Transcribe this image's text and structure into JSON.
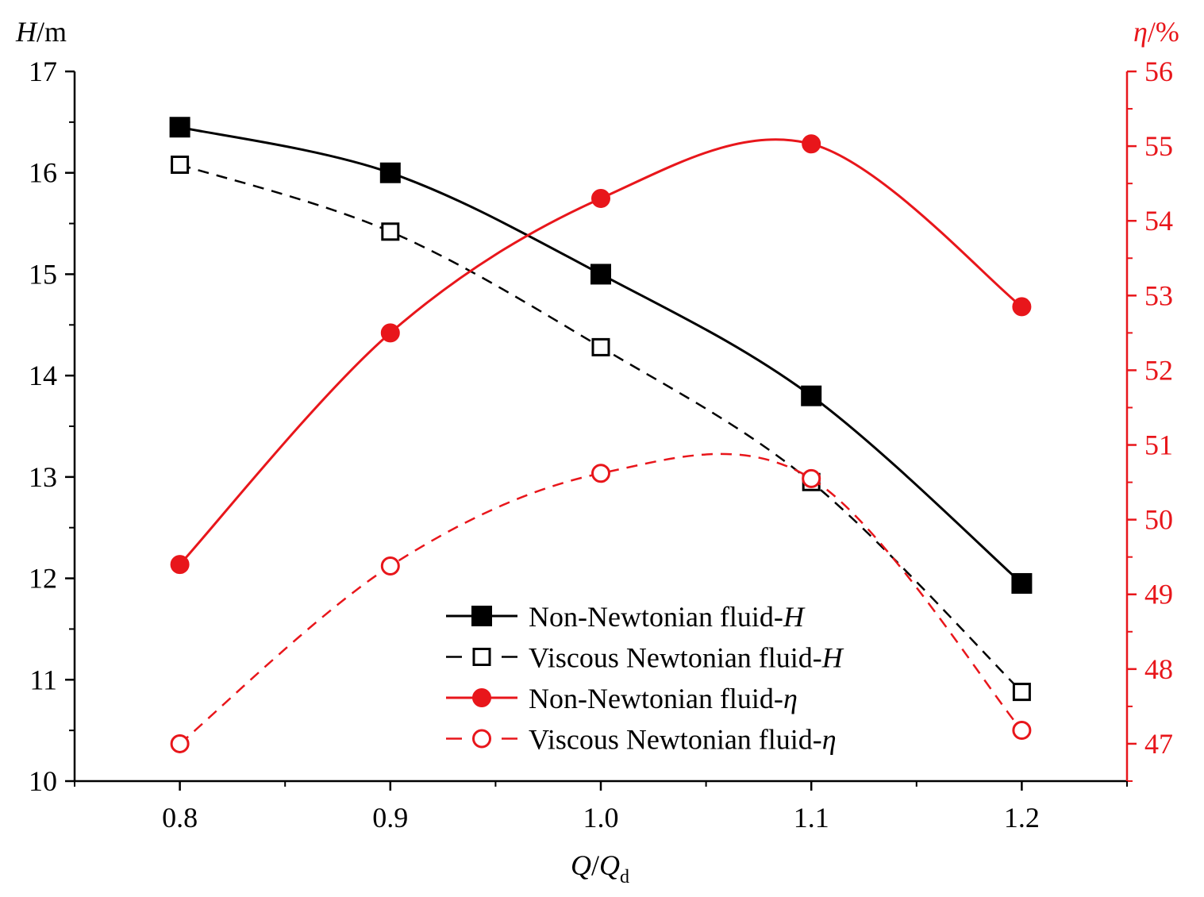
{
  "chart_data": {
    "type": "line",
    "x": [
      0.8,
      0.9,
      1.0,
      1.1,
      1.2
    ],
    "xlim": [
      0.75,
      1.25
    ],
    "x_ticks": [
      "0.8",
      "0.9",
      "1.0",
      "1.1",
      "1.2"
    ],
    "xlabel": {
      "q": "Q",
      "slash": "/",
      "q2": "Q",
      "sub": "d"
    },
    "y_left": {
      "label": {
        "var": "H",
        "unit": "/m"
      },
      "lim": [
        10,
        17
      ],
      "ticks": [
        "10",
        "11",
        "12",
        "13",
        "14",
        "15",
        "16",
        "17"
      ],
      "color": "#000000"
    },
    "y_right": {
      "label": {
        "var": "η",
        "unit": "/%"
      },
      "lim": [
        46.5,
        56
      ],
      "ticks": [
        "47",
        "48",
        "49",
        "50",
        "51",
        "52",
        "53",
        "54",
        "55",
        "56"
      ],
      "color": "#e8161b"
    },
    "series": [
      {
        "name": "Non-Newtonian fluid-",
        "suffix": "H",
        "axis": "left",
        "values": [
          16.45,
          16.0,
          15.0,
          13.8,
          11.95
        ],
        "color": "#000000",
        "marker": "square-filled",
        "dash": "solid"
      },
      {
        "name": "Viscous Newtonian fluid-",
        "suffix": "H",
        "axis": "left",
        "values": [
          16.08,
          15.42,
          14.28,
          12.95,
          10.88
        ],
        "color": "#000000",
        "marker": "square-open",
        "dash": "dashed"
      },
      {
        "name": "Non-Newtonian fluid-",
        "suffix": "η",
        "axis": "right",
        "values": [
          49.4,
          52.5,
          54.3,
          55.03,
          52.85
        ],
        "color": "#e8161b",
        "marker": "circle-filled",
        "dash": "solid"
      },
      {
        "name": "Viscous Newtonian fluid-",
        "suffix": "η",
        "axis": "right",
        "values": [
          47.0,
          49.38,
          50.62,
          50.55,
          47.18
        ],
        "color": "#e8161b",
        "marker": "circle-open",
        "dash": "dashed"
      }
    ],
    "legend_position": "bottom-center"
  }
}
